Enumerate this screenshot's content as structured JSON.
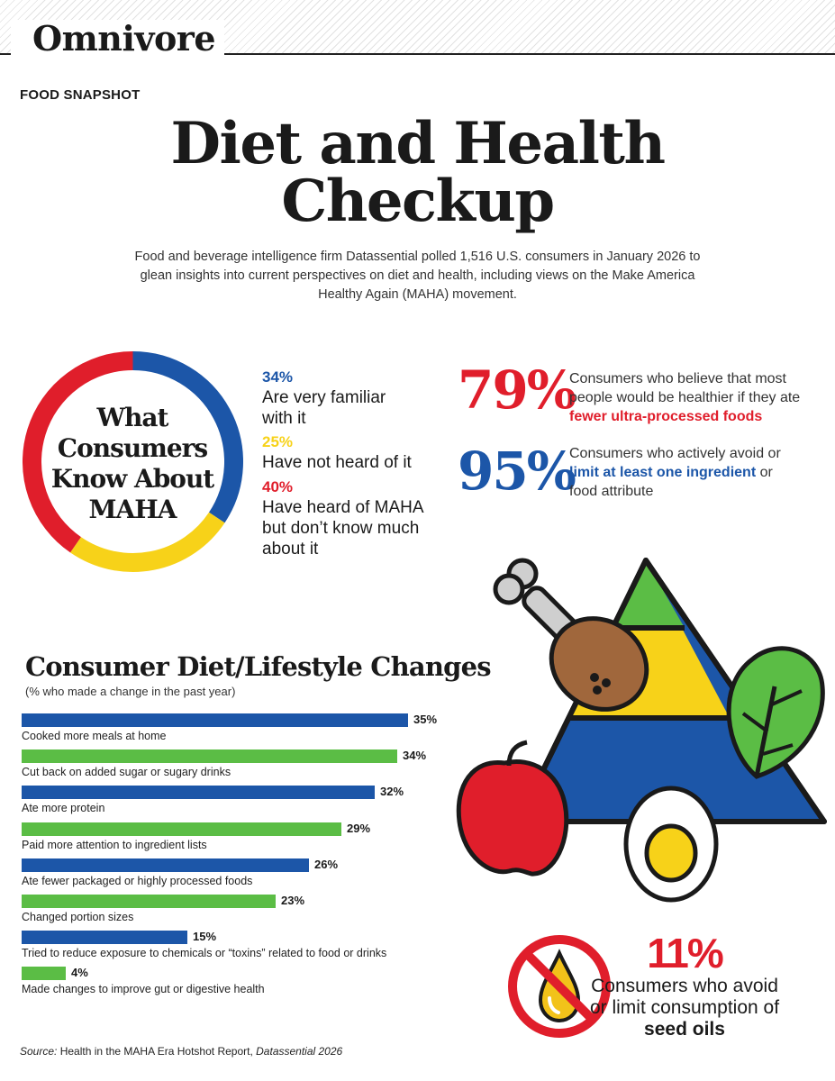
{
  "header": {
    "brand": "Omnivore",
    "kicker": "FOOD SNAPSHOT"
  },
  "title_line1": "Diet and Health",
  "title_line2": "Checkup",
  "intro": "Food and beverage intelligence firm Datassential polled 1,516 U.S. consumers in January 2026 to glean insights into current perspectives on diet and health, including views on the Make America Healthy Again (MAHA) movement.",
  "maha": {
    "title": "What Consumers Know About MAHA",
    "items": [
      {
        "pct": "34%",
        "label": "Are very familiar with it",
        "color": "#1c56a8",
        "value": 34
      },
      {
        "pct": "25%",
        "label": "Have not heard of it",
        "color": "#f7d219",
        "value": 25
      },
      {
        "pct": "40%",
        "label": "Have heard of MAHA but don’t know much about it",
        "color": "#e01e2b",
        "value": 40
      }
    ]
  },
  "stat79": {
    "pct": "79%",
    "text_a": "Consumers who believe that most people would be healthier if they ate ",
    "text_b": "fewer ultra-processed foods"
  },
  "stat95": {
    "pct": "95%",
    "text_a": "Consumers who actively avoid or ",
    "text_b": "limit at least one ingredient",
    "text_c": " or food attribute"
  },
  "stat11": {
    "pct": "11%",
    "text_a": "Consumers who avoid or limit consumption of ",
    "text_b": "seed oils"
  },
  "chart_data": {
    "type": "bar",
    "title": "Consumer Diet/Lifestyle Changes",
    "subtitle": "(% who made a change in the past year)",
    "categories": [
      "Cooked more meals at home",
      "Cut back on added sugar or sugary drinks",
      "Ate more protein",
      "Paid more attention to ingredient lists",
      "Ate fewer packaged or highly processed foods",
      "Changed portion sizes",
      "Tried to reduce exposure to chemicals or “toxins” related to food or drinks",
      "Made changes to improve gut or digestive health"
    ],
    "values": [
      35,
      34,
      32,
      29,
      26,
      23,
      15,
      4
    ],
    "value_labels": [
      "35%",
      "34%",
      "32%",
      "29%",
      "26%",
      "23%",
      "15%",
      "4%"
    ],
    "colors": [
      "#1c56a8",
      "#5bbd45",
      "#1c56a8",
      "#5bbd45",
      "#1c56a8",
      "#5bbd45",
      "#1c56a8",
      "#5bbd45"
    ]
  },
  "source": {
    "prefix": "Source:",
    "text": " Health in the MAHA Era Hotshot Report, ",
    "italic": "Datassential 2026"
  },
  "colors": {
    "blue": "#1c56a8",
    "red": "#e01e2b",
    "yellow": "#f7d219",
    "green": "#5bbd45"
  }
}
